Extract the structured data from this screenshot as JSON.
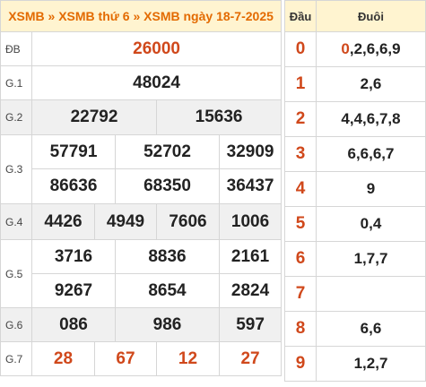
{
  "breadcrumb": {
    "items": [
      "XSMB",
      "XSMB thứ 6",
      "XSMB ngày 18-7-2025"
    ],
    "separator": "»"
  },
  "prizes": {
    "db": {
      "label": "ĐB",
      "values": [
        "26000"
      ]
    },
    "g1": {
      "label": "G.1",
      "values": [
        "48024"
      ]
    },
    "g2": {
      "label": "G.2",
      "values": [
        "22792",
        "15636"
      ]
    },
    "g3": {
      "label": "G.3",
      "values": [
        "57791",
        "52702",
        "32909",
        "86636",
        "68350",
        "36437"
      ]
    },
    "g4": {
      "label": "G.4",
      "values": [
        "4426",
        "4949",
        "7606",
        "1006"
      ]
    },
    "g5": {
      "label": "G.5",
      "values": [
        "3716",
        "8836",
        "2161",
        "9267",
        "8654",
        "2824"
      ]
    },
    "g6": {
      "label": "G.6",
      "values": [
        "086",
        "986",
        "597"
      ]
    },
    "g7": {
      "label": "G.7",
      "values": [
        "28",
        "67",
        "12",
        "27"
      ]
    }
  },
  "loto": {
    "head_label": "Đầu",
    "tail_label": "Đuôi",
    "rows": [
      {
        "head": "0",
        "first": "0",
        "rest": ",2,6,6,9"
      },
      {
        "head": "1",
        "first": "",
        "rest": "2,6"
      },
      {
        "head": "2",
        "first": "",
        "rest": "4,4,6,7,8"
      },
      {
        "head": "3",
        "first": "",
        "rest": "6,6,6,7"
      },
      {
        "head": "4",
        "first": "",
        "rest": "9"
      },
      {
        "head": "5",
        "first": "",
        "rest": "0,4"
      },
      {
        "head": "6",
        "first": "",
        "rest": "1,7,7"
      },
      {
        "head": "7",
        "first": "",
        "rest": ""
      },
      {
        "head": "8",
        "first": "",
        "rest": "6,6"
      },
      {
        "head": "9",
        "first": "",
        "rest": "1,2,7"
      }
    ]
  },
  "colors": {
    "accent": "#e36a00",
    "highlight": "#d0481b",
    "header_bg": "#fff4d0",
    "gray_row": "#f0f0f0"
  }
}
